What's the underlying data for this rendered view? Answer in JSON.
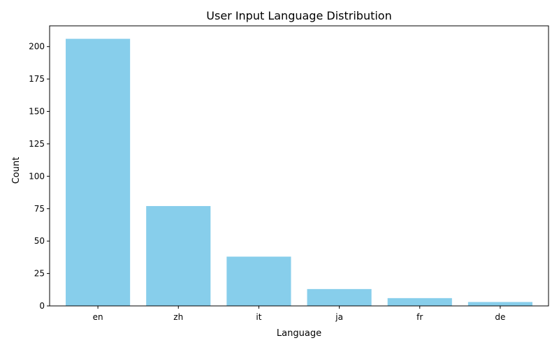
{
  "chart_data": {
    "type": "bar",
    "title": "User Input Language Distribution",
    "xlabel": "Language",
    "ylabel": "Count",
    "categories": [
      "en",
      "zh",
      "it",
      "ja",
      "fr",
      "de"
    ],
    "values": [
      206,
      77,
      38,
      13,
      6,
      3
    ],
    "ylim": [
      0,
      216
    ],
    "yticks": [
      "0",
      "25",
      "50",
      "75",
      "100",
      "125",
      "150",
      "175",
      "200"
    ],
    "grid": false,
    "legend": "none",
    "bar_color": "#87ceeb",
    "axis_color": "#000000"
  }
}
